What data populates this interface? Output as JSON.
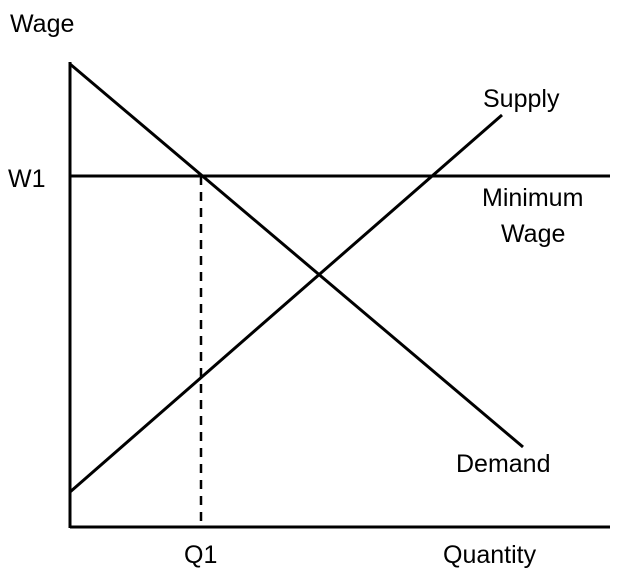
{
  "diagram": {
    "y_axis_label": "Wage",
    "x_axis_label": "Quantity",
    "wage_level_label": "W1",
    "quantity_level_label": "Q1",
    "supply_label": "Supply",
    "demand_label": "Demand",
    "minimum_wage_label_line1": "Minimum",
    "minimum_wage_label_line2": "Wage"
  },
  "colors": {
    "ink": "#000000",
    "background": "#ffffff"
  }
}
